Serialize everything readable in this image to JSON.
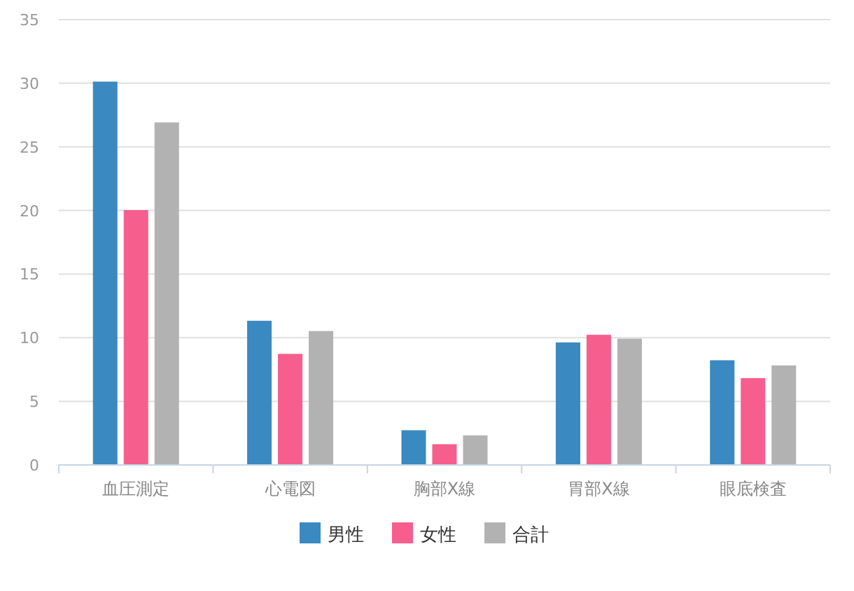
{
  "chart_data": {
    "type": "bar",
    "categories": [
      "血圧測定",
      "心電図",
      "胸部X線",
      "胃部X線",
      "眼底検査"
    ],
    "series": [
      {
        "name": "男性",
        "color": "#3a89c0",
        "values": [
          30.1,
          11.3,
          2.7,
          9.6,
          8.2
        ]
      },
      {
        "name": "女性",
        "color": "#f65e8e",
        "values": [
          20.0,
          8.7,
          1.6,
          10.2,
          6.8
        ]
      },
      {
        "name": "合計",
        "color": "#b2b2b2",
        "values": [
          26.9,
          10.5,
          2.3,
          9.9,
          7.8
        ]
      }
    ],
    "ylim": [
      0,
      35
    ],
    "yticks": [
      0,
      5,
      10,
      15,
      20,
      25,
      30,
      35
    ],
    "grid": "y",
    "legend": "bottom"
  }
}
